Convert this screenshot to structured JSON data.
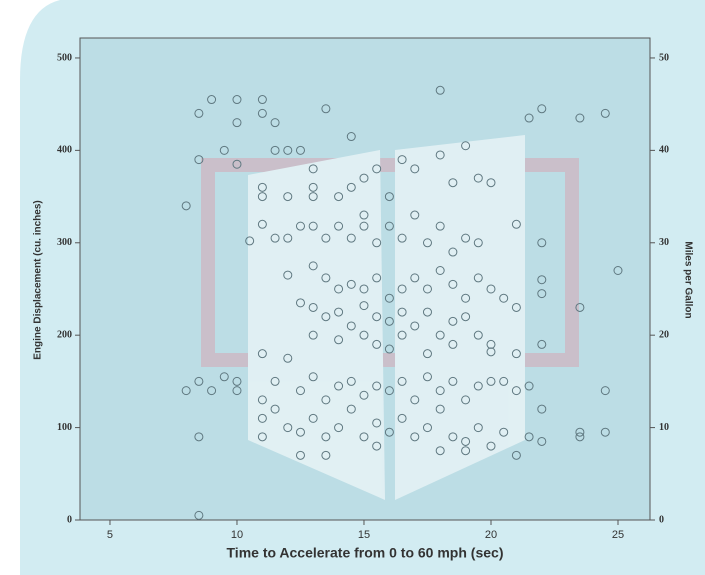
{
  "chart_data": {
    "type": "scatter",
    "xlabel": "Time to Accelerate from 0 to 60 mph (sec)",
    "ylabel": "Engine Displacement (cu. inches)",
    "y2label": "Miles per Gallon",
    "xlim": [
      3.82,
      26.26
    ],
    "xticks": [
      5,
      10,
      15,
      20,
      25
    ],
    "ylim": [
      0,
      521.6
    ],
    "yticks": [
      0,
      100,
      200,
      300,
      400,
      500
    ],
    "y2lim": [
      0,
      52.16
    ],
    "y2ticks": [
      0,
      10,
      20,
      30,
      40,
      50
    ],
    "color": "#5f7880",
    "x": [
      8.5,
      9,
      10,
      11,
      11,
      11.5,
      10,
      9.5,
      10,
      11.5,
      12,
      12.5,
      13.5,
      14.5,
      18,
      19,
      21.5,
      22,
      23.5,
      24.5,
      8.5,
      8,
      11,
      11,
      12,
      13,
      13,
      14,
      14.5,
      15,
      15.5,
      16,
      16.5,
      17,
      18,
      18.5,
      19.5,
      20,
      11,
      11.5,
      12,
      12.5,
      13,
      13.5,
      14,
      14.5,
      15,
      15.5,
      16,
      16.5,
      17,
      17.5,
      18,
      18.5,
      19,
      19.5,
      21,
      22,
      10.5,
      12,
      13,
      13.5,
      14,
      14.5,
      15,
      15.5,
      16,
      16.5,
      17,
      17.5,
      18,
      18.5,
      19,
      19.5,
      20,
      20.5,
      21,
      22,
      22,
      23.5,
      25,
      12.5,
      13,
      13.5,
      14,
      14.5,
      15,
      15.5,
      16,
      16.5,
      17,
      17.5,
      18,
      18.5,
      19,
      20,
      13,
      14,
      15,
      15.5,
      16,
      16.5,
      17.5,
      18.5,
      19.5,
      20,
      21,
      22,
      8,
      8.5,
      9,
      9.5,
      10,
      10,
      11,
      11,
      11.5,
      12,
      12.5,
      13,
      13.5,
      14,
      14.5,
      15,
      15.5,
      16,
      16.5,
      17,
      17.5,
      18,
      18.5,
      19,
      19.5,
      20,
      20.5,
      21,
      21.5,
      11,
      11.5,
      12,
      12.5,
      13,
      13.5,
      14,
      14.5,
      15,
      15.5,
      16,
      16.5,
      17,
      17.5,
      18,
      18.5,
      19,
      19.5,
      20,
      20.5,
      21,
      21.5,
      22,
      22,
      23.5,
      23.5,
      24.5,
      24.5,
      8.5,
      12.5,
      13.5,
      15.5,
      18,
      19,
      8.5,
      13,
      15,
      11
    ],
    "values": [
      440,
      455,
      455,
      455,
      440,
      430,
      430,
      400,
      385,
      400,
      400,
      400,
      445,
      415,
      465,
      405,
      435,
      445,
      435,
      440,
      390,
      340,
      360,
      350,
      350,
      350,
      360,
      350,
      360,
      370,
      380,
      350,
      390,
      380,
      395,
      365,
      370,
      365,
      320,
      305,
      305,
      318,
      318,
      305,
      318,
      305,
      318,
      300,
      318,
      305,
      330,
      300,
      318,
      290,
      305,
      300,
      320,
      300,
      302,
      265,
      275,
      262,
      250,
      255,
      250,
      262,
      240,
      250,
      262,
      250,
      270,
      255,
      240,
      262,
      250,
      240,
      230,
      260,
      245,
      230,
      270,
      235,
      230,
      220,
      225,
      210,
      232,
      220,
      215,
      225,
      210,
      225,
      200,
      215,
      220,
      190,
      200,
      195,
      200,
      190,
      185,
      200,
      180,
      190,
      200,
      182,
      180,
      190,
      140,
      150,
      140,
      155,
      150,
      140,
      180,
      130,
      150,
      175,
      140,
      155,
      130,
      145,
      150,
      135,
      145,
      140,
      150,
      130,
      155,
      140,
      150,
      130,
      145,
      150,
      150,
      140,
      145,
      110,
      120,
      100,
      95,
      110,
      90,
      100,
      120,
      90,
      105,
      95,
      110,
      90,
      100,
      120,
      90,
      85,
      100,
      80,
      95,
      70,
      90,
      85,
      120,
      95,
      90,
      95,
      140,
      90,
      70,
      70,
      80,
      75,
      75,
      5,
      380,
      330,
      90
    ]
  }
}
